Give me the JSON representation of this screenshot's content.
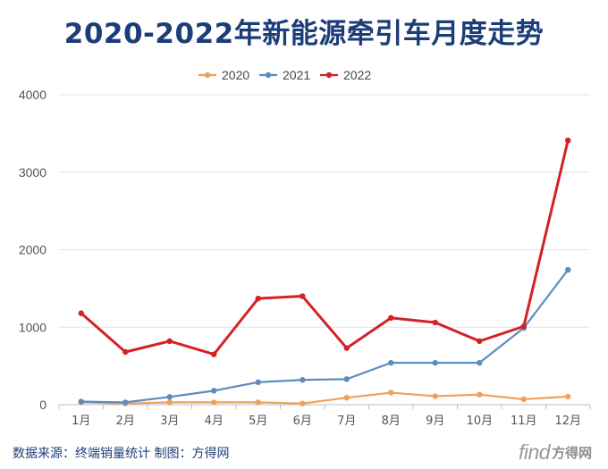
{
  "title": "2020-2022年新能源牵引车月度走势",
  "source_text": "数据来源：终端销量统计    制图：方得网",
  "logo": {
    "find": "find",
    "cn": "方得网"
  },
  "chart_data": {
    "type": "line",
    "title": "2020-2022年新能源牵引车月度走势",
    "categories": [
      "1月",
      "2月",
      "3月",
      "4月",
      "5月",
      "6月",
      "7月",
      "8月",
      "9月",
      "10月",
      "11月",
      "12月"
    ],
    "ylim": [
      0,
      4000
    ],
    "yticks": [
      0,
      1000,
      2000,
      3000,
      4000
    ],
    "grid": true,
    "legend": "top-center",
    "series": [
      {
        "name": "2020",
        "color": "#f0a05a",
        "values": [
          30,
          15,
          30,
          30,
          30,
          15,
          90,
          155,
          110,
          130,
          70,
          105
        ]
      },
      {
        "name": "2021",
        "color": "#5b8cc0",
        "values": [
          40,
          30,
          100,
          180,
          290,
          320,
          330,
          540,
          540,
          540,
          990,
          1740
        ]
      },
      {
        "name": "2022",
        "color": "#d42126",
        "values": [
          1180,
          680,
          820,
          650,
          1370,
          1400,
          730,
          1120,
          1060,
          820,
          1010,
          3410
        ]
      }
    ]
  }
}
